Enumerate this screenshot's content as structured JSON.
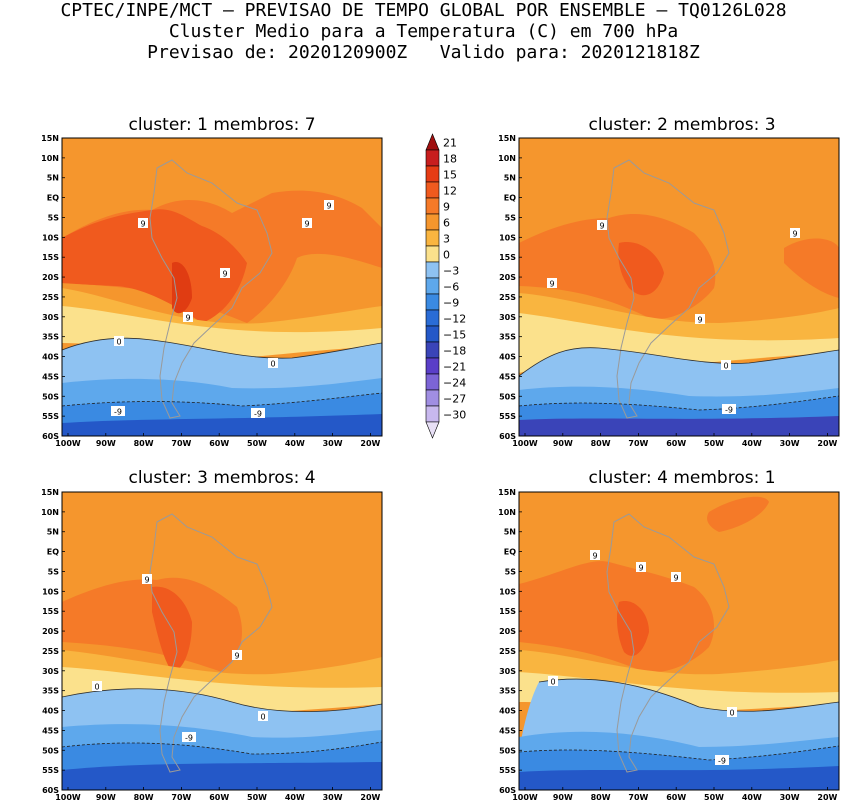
{
  "header": {
    "line1": "CPTEC/INPE/MCT – PREVISAO DE TEMPO GLOBAL POR ENSEMBLE – TQ0126L028",
    "line2": "Cluster Medio para a Temperatura (C) em 700 hPa",
    "line3": "Previsao de: 2020120900Z   Valido para: 2020121818Z"
  },
  "axes": {
    "lat_labels": [
      "15N",
      "10N",
      "5N",
      "EQ",
      "5S",
      "10S",
      "15S",
      "20S",
      "25S",
      "30S",
      "35S",
      "40S",
      "45S",
      "50S",
      "55S",
      "60S"
    ],
    "lon_labels": [
      "100W",
      "90W",
      "80W",
      "70W",
      "60W",
      "50W",
      "40W",
      "30W",
      "20W"
    ]
  },
  "colorbar": {
    "labels": [
      "21",
      "18",
      "15",
      "12",
      "9",
      "6",
      "3",
      "0",
      "-3",
      "-6",
      "-9",
      "-12",
      "-15",
      "-18",
      "-21",
      "-24",
      "-27",
      "-30"
    ],
    "colors": [
      "#a01010",
      "#c81e1e",
      "#e63c14",
      "#f05a1e",
      "#f57a28",
      "#f5962d",
      "#f9b540",
      "#fbe18c",
      "#8ec2f2",
      "#5ea8ec",
      "#3a8ae2",
      "#2a6cd6",
      "#2458c8",
      "#3a44b8",
      "#5a3ec8",
      "#7c64d6",
      "#a08ee2",
      "#c8b8ee",
      "#e8e0f6"
    ]
  },
  "panels": [
    {
      "title": "cluster: 1   membros: 7",
      "contour_labels": [
        "9",
        "9",
        "9",
        "9",
        "9",
        "0",
        "0",
        "-9",
        "-9"
      ]
    },
    {
      "title": "cluster: 2   membros: 3",
      "contour_labels": [
        "9",
        "9",
        "9",
        "9",
        "0",
        "-9"
      ]
    },
    {
      "title": "cluster: 3   membros: 4",
      "contour_labels": [
        "9",
        "9",
        "0",
        "0",
        "-9"
      ]
    },
    {
      "title": "cluster: 4   membros: 1",
      "contour_labels": [
        "9",
        "9",
        "9",
        "0",
        "0",
        "-9"
      ]
    }
  ]
}
